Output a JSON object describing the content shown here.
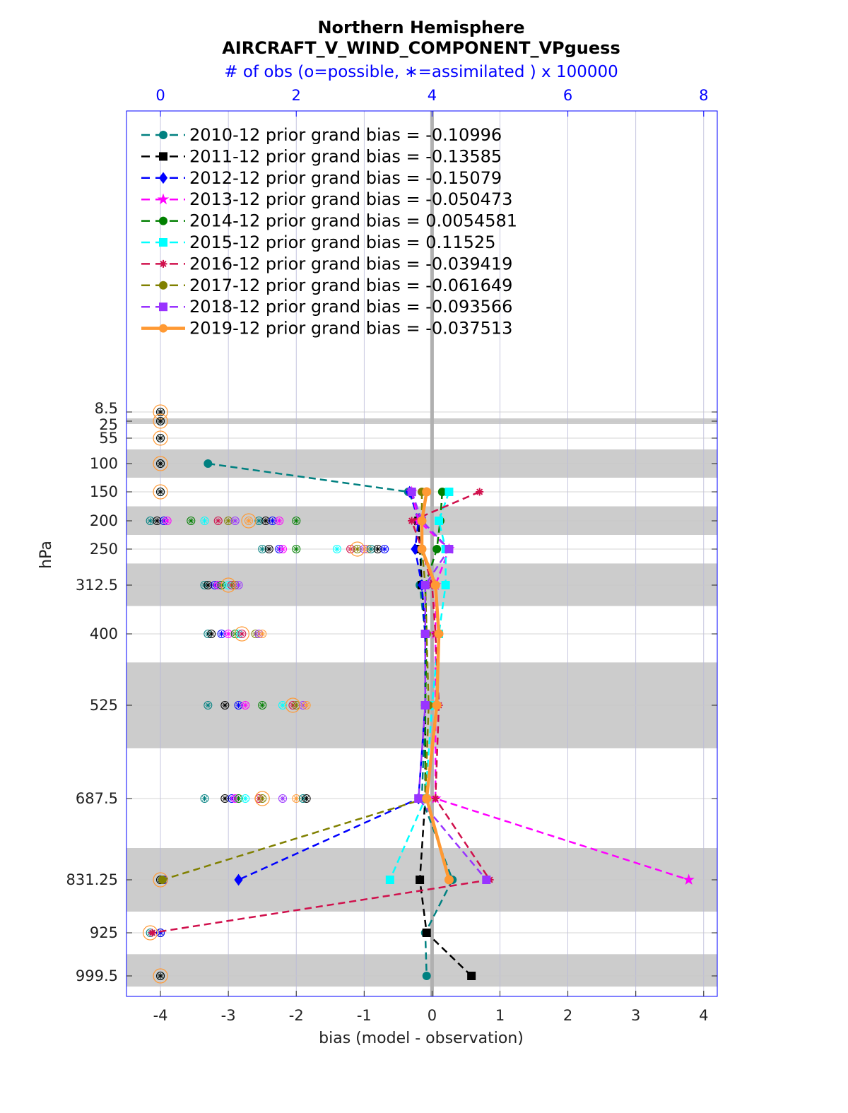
{
  "chart_data": {
    "type": "line",
    "title": "Northern Hemisphere",
    "subtitle": "AIRCRAFT_V_WIND_COMPONENT_VPguess",
    "top_axis_label": "# of obs (o=possible, ∗=assimilated ) x 100000",
    "xlabel": "bias (model - observation)",
    "ylabel": "hPa",
    "xlim": [
      -4.5,
      4.2
    ],
    "x_ticks": [
      "-4",
      "-3",
      "-2",
      "-1",
      "0",
      "1",
      "2",
      "3",
      "4"
    ],
    "top_xlim": [
      -0.5,
      8.2
    ],
    "top_x_ticks": [
      "0",
      "2",
      "4",
      "6",
      "8"
    ],
    "y_scale": "reversed",
    "pressure_levels": [
      8.5,
      25,
      55,
      100,
      150,
      200,
      250,
      312.5,
      400,
      525,
      687.5,
      831.25,
      925,
      999.5
    ],
    "y_tick_labels": [
      "8.5",
      "25",
      "55",
      "100",
      "150",
      "200",
      "250",
      "312.5",
      "400",
      "525",
      "687.5",
      "831.25",
      "925",
      "999.5"
    ],
    "shaded_layers": [
      [
        20,
        30
      ],
      [
        75,
        125
      ],
      [
        175,
        225
      ],
      [
        275,
        350
      ],
      [
        450,
        600
      ],
      [
        775,
        887.5
      ],
      [
        962,
        1018
      ]
    ],
    "grid": true,
    "legend_position": "top-left",
    "series": [
      {
        "name": "2010-12",
        "label": "2010-12 prior grand bias = -0.10996",
        "color": "#008080",
        "marker": "circle",
        "dashed": true,
        "values": [
          null,
          null,
          null,
          -3.3,
          -0.35,
          -0.15,
          -0.15,
          -0.18,
          -0.1,
          -0.1,
          -0.15,
          0.3,
          -0.1,
          -0.08
        ]
      },
      {
        "name": "2011-12",
        "label": "2011-12 prior grand bias = -0.13585",
        "color": "#000000",
        "marker": "square",
        "dashed": true,
        "values": [
          null,
          null,
          null,
          null,
          -0.3,
          -0.2,
          -0.18,
          -0.15,
          -0.1,
          -0.1,
          -0.1,
          -0.18,
          -0.08,
          0.58
        ]
      },
      {
        "name": "2012-12",
        "label": "2012-12 prior grand bias = -0.15079",
        "color": "#0000ff",
        "marker": "diamond",
        "dashed": true,
        "values": [
          null,
          null,
          null,
          null,
          -0.33,
          -0.2,
          -0.25,
          -0.15,
          -0.1,
          -0.1,
          -0.2,
          -2.85,
          null,
          null
        ]
      },
      {
        "name": "2013-12",
        "label": "2013-12 prior grand bias = -0.050473",
        "color": "#ff00ff",
        "marker": "star",
        "dashed": true,
        "values": [
          null,
          null,
          null,
          null,
          -0.3,
          -0.2,
          0.25,
          0.05,
          0.05,
          0.05,
          0.05,
          3.78,
          null,
          null
        ]
      },
      {
        "name": "2014-12",
        "label": "2014-12 prior grand bias = 0.0054581",
        "color": "#007f00",
        "marker": "hexagon",
        "dashed": true,
        "values": [
          null,
          null,
          null,
          null,
          0.15,
          0.12,
          0.07,
          -0.1,
          -0.08,
          -0.1,
          -0.1,
          null,
          null,
          null
        ]
      },
      {
        "name": "2015-12",
        "label": "2015-12 prior grand bias = 0.11525",
        "color": "#00ffff",
        "marker": "square",
        "dashed": true,
        "values": [
          null,
          null,
          null,
          null,
          0.25,
          0.1,
          0.2,
          0.2,
          0.1,
          0.0,
          -0.1,
          -0.62,
          null,
          null
        ]
      },
      {
        "name": "2016-12",
        "label": "2016-12 prior grand bias = -0.039419",
        "color": "#d0104c",
        "marker": "asterisk",
        "dashed": true,
        "values": [
          null,
          null,
          null,
          null,
          0.7,
          -0.3,
          -0.15,
          0.0,
          0.05,
          0.1,
          0.05,
          0.85,
          -4.12,
          null
        ]
      },
      {
        "name": "2017-12",
        "label": "2017-12 prior grand bias = -0.061649",
        "color": "#808000",
        "marker": "circle",
        "dashed": true,
        "values": [
          null,
          null,
          null,
          null,
          -0.15,
          -0.15,
          -0.15,
          -0.1,
          -0.08,
          -0.05,
          -0.1,
          -3.97,
          null,
          null
        ]
      },
      {
        "name": "2018-12",
        "label": "2018-12 prior grand bias = -0.093566",
        "color": "#9933ff",
        "marker": "square",
        "dashed": true,
        "values": [
          null,
          null,
          null,
          null,
          -0.3,
          -0.15,
          0.25,
          -0.1,
          -0.1,
          -0.1,
          -0.2,
          0.8,
          null,
          null
        ]
      },
      {
        "name": "2019-12",
        "label": "2019-12 prior grand bias = -0.037513",
        "color": "#ff9933",
        "marker": "circle",
        "dashed": false,
        "values": [
          null,
          null,
          null,
          null,
          -0.08,
          -0.15,
          -0.15,
          0.05,
          0.1,
          0.07,
          -0.08,
          0.25,
          null,
          null
        ]
      }
    ],
    "obs_counts_top_axis": {
      "note_values_in_top_axis_units": true,
      "rows": [
        {
          "level": 8.5,
          "points": [
            0,
            0
          ]
        },
        {
          "level": 25,
          "points": [
            0,
            0
          ]
        },
        {
          "level": 55,
          "points": [
            0,
            0
          ]
        },
        {
          "level": 100,
          "points": [
            0,
            0
          ]
        },
        {
          "level": 150,
          "points": [
            0,
            0
          ]
        },
        {
          "level": 200,
          "points": [
            -0.15,
            -0.05,
            0.05,
            0.1,
            0.45,
            0.65,
            0.85,
            1.0,
            1.1,
            1.3,
            1.45,
            1.55,
            1.65,
            1.75,
            2.0
          ]
        },
        {
          "level": 250,
          "points": [
            1.5,
            1.6,
            1.75,
            1.8,
            2.0,
            2.6,
            2.8,
            2.9,
            3.0,
            3.05,
            3.1,
            3.2,
            3.3
          ]
        },
        {
          "level": 312.5,
          "points": [
            0.65,
            0.7,
            0.8,
            0.85,
            0.9,
            1.0,
            1.05,
            1.1,
            1.15
          ]
        },
        {
          "level": 400,
          "points": [
            0.7,
            0.75,
            0.9,
            1.0,
            1.1,
            1.15,
            1.2,
            1.4,
            1.45,
            1.5
          ]
        },
        {
          "level": 525,
          "points": [
            0.7,
            0.95,
            1.15,
            1.25,
            1.5,
            1.8,
            1.95,
            2.0,
            2.1,
            2.15
          ]
        },
        {
          "level": 687.5,
          "points": [
            0.65,
            0.95,
            1.05,
            1.1,
            1.15,
            1.25,
            1.45,
            1.5,
            1.8,
            2.0,
            2.1,
            2.15
          ]
        },
        {
          "level": 831.25,
          "points": [
            0,
            0,
            0.05
          ]
        },
        {
          "level": 925,
          "points": [
            -0.15,
            0,
            0
          ]
        },
        {
          "level": 999.5,
          "points": [
            0,
            0
          ]
        }
      ]
    }
  }
}
